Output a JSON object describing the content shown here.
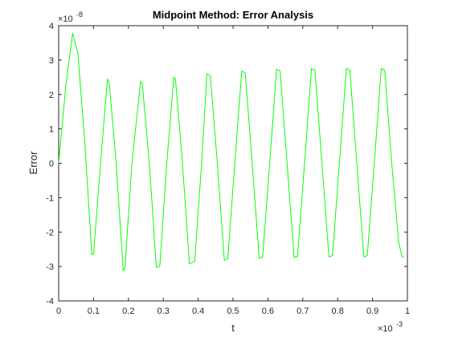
{
  "chart_data": {
    "type": "line",
    "title": "Midpoint Method: Error Analysis",
    "xlabel": "t",
    "ylabel": "Error",
    "x_multiplier_label": "×10",
    "x_multiplier_exp": "-3",
    "y_multiplier_label": "×10",
    "y_multiplier_exp": "-8",
    "xlim": [
      0,
      1
    ],
    "ylim": [
      -4,
      4
    ],
    "xticks": [
      "0",
      "0.1",
      "0.2",
      "0.3",
      "0.4",
      "0.5",
      "0.6",
      "0.7",
      "0.8",
      "0.9",
      "1"
    ],
    "yticks": [
      "-4",
      "-3",
      "-2",
      "-1",
      "0",
      "1",
      "2",
      "3",
      "4"
    ],
    "grid": false,
    "series": [
      {
        "color": "#00ff00",
        "x": [
          0,
          0.02,
          0.04,
          0.055,
          0.075,
          0.095,
          0.1,
          0.12,
          0.14,
          0.145,
          0.165,
          0.185,
          0.19,
          0.21,
          0.235,
          0.24,
          0.26,
          0.28,
          0.29,
          0.31,
          0.33,
          0.335,
          0.355,
          0.375,
          0.39,
          0.41,
          0.425,
          0.435,
          0.455,
          0.475,
          0.485,
          0.505,
          0.525,
          0.535,
          0.555,
          0.575,
          0.585,
          0.605,
          0.625,
          0.635,
          0.655,
          0.675,
          0.685,
          0.705,
          0.725,
          0.735,
          0.755,
          0.775,
          0.785,
          0.805,
          0.825,
          0.835,
          0.855,
          0.875,
          0.885,
          0.905,
          0.925,
          0.935,
          0.955,
          0.975,
          0.985,
          0.99
        ],
        "y": [
          0,
          2.2,
          3.78,
          3.2,
          0.6,
          -2.65,
          -2.65,
          0,
          2.45,
          2.35,
          0,
          -3.12,
          -3.05,
          0,
          2.38,
          2.3,
          0,
          -3.02,
          -3.0,
          0,
          2.5,
          2.45,
          0,
          -2.92,
          -2.85,
          0,
          2.6,
          2.55,
          0,
          -2.82,
          -2.78,
          0,
          2.68,
          2.62,
          0,
          -2.76,
          -2.72,
          0,
          2.73,
          2.68,
          0,
          -2.74,
          -2.7,
          0,
          2.76,
          2.7,
          0,
          -2.72,
          -2.68,
          0,
          2.76,
          2.7,
          0,
          -2.72,
          -2.68,
          0,
          2.76,
          2.7,
          0,
          -2.3,
          -2.72,
          -2.72
        ]
      }
    ]
  }
}
